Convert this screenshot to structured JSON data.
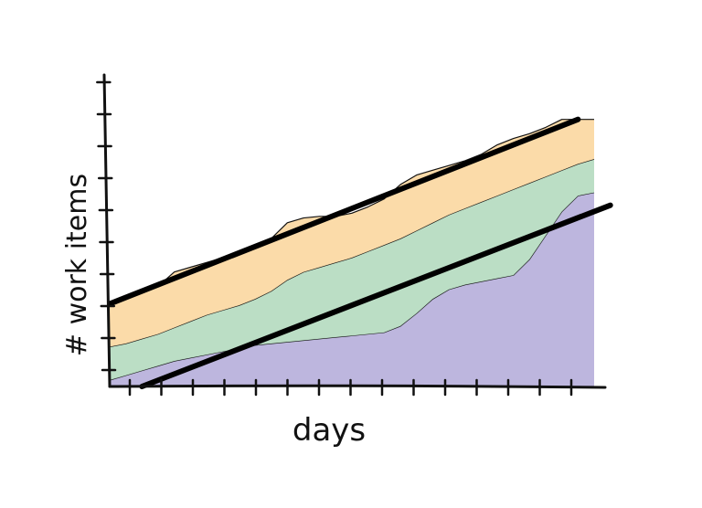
{
  "chart_data": {
    "type": "area",
    "xlabel": "days",
    "ylabel": "# work items",
    "x": [
      0,
      1,
      2,
      3,
      4,
      5,
      6,
      7,
      8,
      9,
      10,
      11,
      12,
      13,
      14,
      15,
      16,
      17,
      18,
      19,
      20,
      21,
      22,
      23,
      24,
      25,
      26,
      27,
      28,
      29,
      30
    ],
    "xlim": [
      0,
      30
    ],
    "ylim": [
      0,
      20
    ],
    "series": [
      {
        "color": "#b9b2dc",
        "values": [
          0.4,
          0.7,
          1.0,
          1.3,
          1.6,
          1.8,
          2.0,
          2.2,
          2.4,
          2.6,
          2.7,
          2.8,
          2.9,
          3.0,
          3.1,
          3.2,
          3.3,
          3.4,
          3.8,
          4.6,
          5.5,
          6.1,
          6.4,
          6.6,
          6.8,
          7.0,
          8.0,
          9.5,
          11.0,
          12.0,
          12.2
        ]
      },
      {
        "color": "#b7dcc2",
        "values": [
          2.5,
          2.7,
          3.0,
          3.3,
          3.7,
          4.1,
          4.5,
          4.8,
          5.1,
          5.5,
          6.0,
          6.7,
          7.2,
          7.5,
          7.8,
          8.1,
          8.5,
          8.9,
          9.3,
          9.8,
          10.3,
          10.8,
          11.2,
          11.6,
          12.0,
          12.4,
          12.8,
          13.2,
          13.6,
          14.0,
          14.3
        ]
      },
      {
        "color": "#fbd9a4",
        "values": [
          5.2,
          5.5,
          5.9,
          6.3,
          7.2,
          7.5,
          7.8,
          8.1,
          8.4,
          8.7,
          9.3,
          10.3,
          10.6,
          10.7,
          10.7,
          10.9,
          11.3,
          11.8,
          12.7,
          13.3,
          13.6,
          13.9,
          14.2,
          14.6,
          15.2,
          15.6,
          15.9,
          16.3,
          16.8,
          16.8,
          16.8
        ]
      }
    ],
    "trend_lines": [
      {
        "from": [
          0,
          5.2
        ],
        "to": [
          29,
          16.8
        ]
      },
      {
        "from": [
          2,
          0.0
        ],
        "to": [
          31,
          11.4
        ]
      }
    ]
  }
}
